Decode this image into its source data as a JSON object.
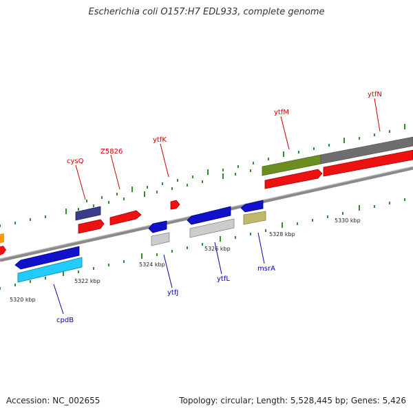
{
  "title": "Escherichia coli O157:H7 EDL933, complete genome",
  "footer": {
    "accession": "Accession: NC_002655",
    "topology": "Topology: circular; Length: 5,528,445 bp; Genes: 5,426"
  },
  "colors": {
    "backbone": "#8c8c8c",
    "tick": "#2f8f2f",
    "gene_label_forward": "#cc0000",
    "gene_label_reverse": "#0000aa"
  },
  "ticks": [
    "5320 kbp",
    "5322 kbp",
    "5324 kbp",
    "5326 kbp",
    "5328 kbp",
    "5330 kbp"
  ],
  "genes": [
    {
      "name": "cysQ",
      "strand": "forward"
    },
    {
      "name": "Z5826",
      "strand": "forward"
    },
    {
      "name": "ytfK",
      "strand": "forward"
    },
    {
      "name": "ytfM",
      "strand": "forward"
    },
    {
      "name": "ytfN",
      "strand": "forward"
    },
    {
      "name": "cpdB",
      "strand": "reverse"
    },
    {
      "name": "ytfJ",
      "strand": "reverse"
    },
    {
      "name": "ytfL",
      "strand": "reverse"
    },
    {
      "name": "msrA",
      "strand": "reverse"
    }
  ]
}
